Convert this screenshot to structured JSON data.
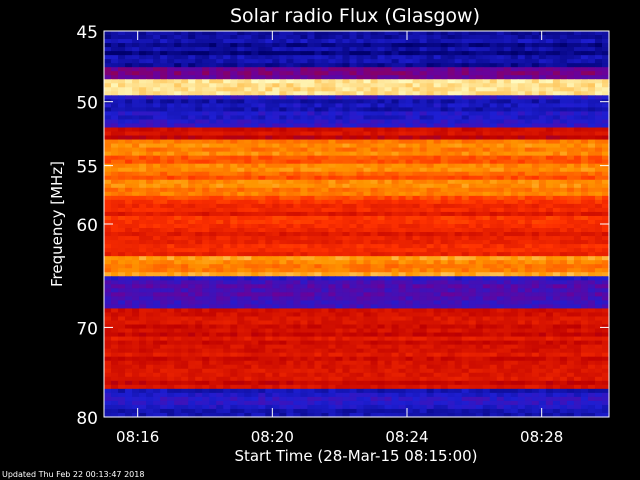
{
  "chart_data": {
    "type": "heatmap",
    "title": "Solar radio Flux (Glasgow)",
    "xlabel": "Start Time (28-Mar-15 08:15:00)",
    "ylabel": "Frequency [MHz]",
    "x_unit": "time",
    "xlim": [
      "08:15:00",
      "08:30:00"
    ],
    "ylim": [
      45,
      80
    ],
    "y_scale": "log",
    "y_reversed": true,
    "xticks": [
      "08:16",
      "08:20",
      "08:24",
      "08:28"
    ],
    "xtick_values_min": [
      1,
      5,
      9,
      13
    ],
    "yticks": [
      45,
      50,
      55,
      60,
      70,
      80
    ],
    "colormap": "blue-red-yellow-white",
    "colors": {
      "low": "#0000a0",
      "mid_low": "#2020d0",
      "mid": "#c00000",
      "mid_high": "#ff3000",
      "high": "#ffa000",
      "peak": "#ffffc0"
    },
    "bands": [
      {
        "from_mhz": 45.0,
        "to_mhz": 47.5,
        "level": 0.05
      },
      {
        "from_mhz": 47.5,
        "to_mhz": 48.4,
        "level": 0.35
      },
      {
        "from_mhz": 48.4,
        "to_mhz": 49.4,
        "level": 1.0
      },
      {
        "from_mhz": 49.4,
        "to_mhz": 52.0,
        "level": 0.15
      },
      {
        "from_mhz": 52.0,
        "to_mhz": 53.0,
        "level": 0.5
      },
      {
        "from_mhz": 53.0,
        "to_mhz": 58.0,
        "level": 0.75
      },
      {
        "from_mhz": 58.0,
        "to_mhz": 63.0,
        "level": 0.6
      },
      {
        "from_mhz": 63.0,
        "to_mhz": 65.0,
        "level": 0.8
      },
      {
        "from_mhz": 65.0,
        "to_mhz": 68.0,
        "level": 0.2
      },
      {
        "from_mhz": 68.0,
        "to_mhz": 76.5,
        "level": 0.5
      },
      {
        "from_mhz": 76.5,
        "to_mhz": 80.0,
        "level": 0.15
      }
    ]
  },
  "footer": {
    "updated": "Updated Thu Feb 22 00:13:47 2018"
  }
}
